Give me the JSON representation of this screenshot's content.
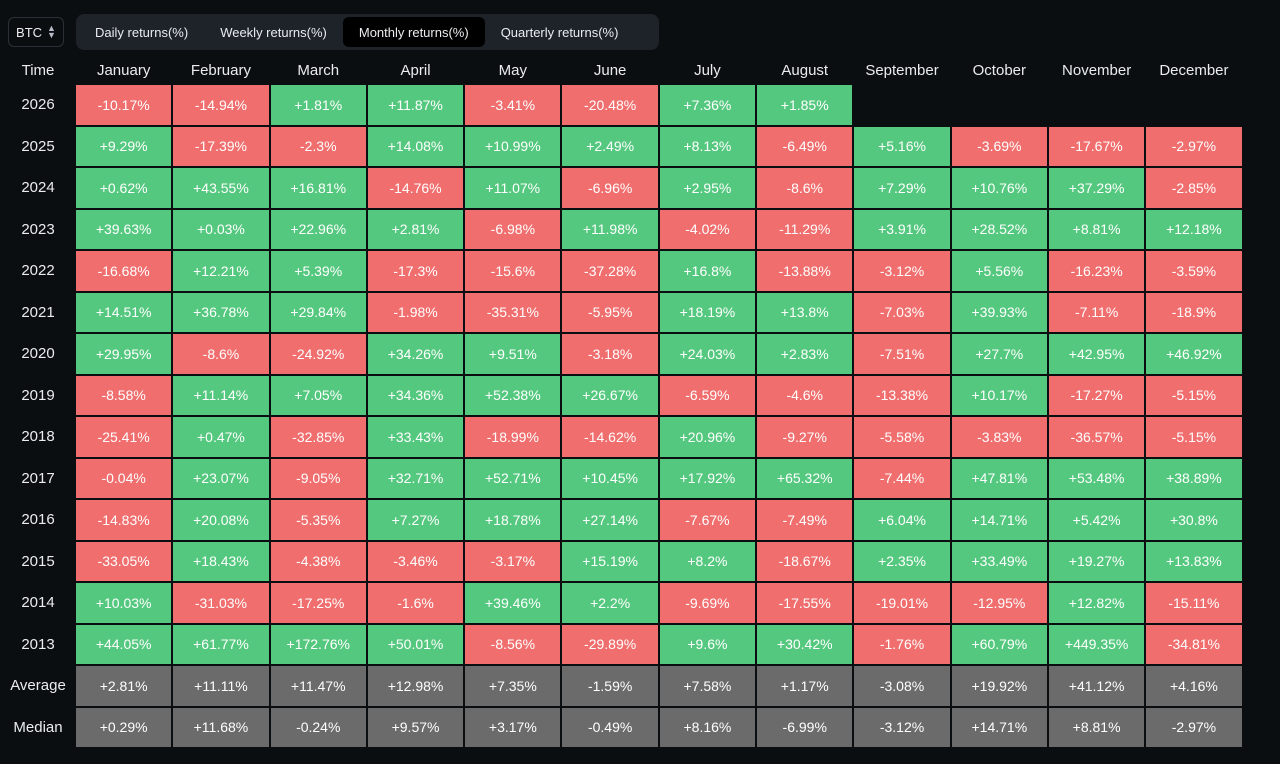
{
  "asset_selector": {
    "value": "BTC"
  },
  "tabs": [
    {
      "label": "Daily returns(%)",
      "active": false
    },
    {
      "label": "Weekly returns(%)",
      "active": false
    },
    {
      "label": "Monthly returns(%)",
      "active": true
    },
    {
      "label": "Quarterly returns(%)",
      "active": false
    }
  ],
  "colors": {
    "positive": "#55c87f",
    "negative": "#f06e6e",
    "summary": "#6b6b6b",
    "background": "#0b0e11"
  },
  "table": {
    "corner_header": "Time",
    "columns": [
      "January",
      "February",
      "March",
      "April",
      "May",
      "June",
      "July",
      "August",
      "September",
      "October",
      "November",
      "December"
    ],
    "rows": [
      {
        "year": "2026",
        "values": [
          "-10.17%",
          "-14.94%",
          "+1.81%",
          "+11.87%",
          "-3.41%",
          "-20.48%",
          "+7.36%",
          "+1.85%",
          "",
          "",
          "",
          ""
        ]
      },
      {
        "year": "2025",
        "values": [
          "+9.29%",
          "-17.39%",
          "-2.3%",
          "+14.08%",
          "+10.99%",
          "+2.49%",
          "+8.13%",
          "-6.49%",
          "+5.16%",
          "-3.69%",
          "-17.67%",
          "-2.97%"
        ]
      },
      {
        "year": "2024",
        "values": [
          "+0.62%",
          "+43.55%",
          "+16.81%",
          "-14.76%",
          "+11.07%",
          "-6.96%",
          "+2.95%",
          "-8.6%",
          "+7.29%",
          "+10.76%",
          "+37.29%",
          "-2.85%"
        ]
      },
      {
        "year": "2023",
        "values": [
          "+39.63%",
          "+0.03%",
          "+22.96%",
          "+2.81%",
          "-6.98%",
          "+11.98%",
          "-4.02%",
          "-11.29%",
          "+3.91%",
          "+28.52%",
          "+8.81%",
          "+12.18%"
        ]
      },
      {
        "year": "2022",
        "values": [
          "-16.68%",
          "+12.21%",
          "+5.39%",
          "-17.3%",
          "-15.6%",
          "-37.28%",
          "+16.8%",
          "-13.88%",
          "-3.12%",
          "+5.56%",
          "-16.23%",
          "-3.59%"
        ]
      },
      {
        "year": "2021",
        "values": [
          "+14.51%",
          "+36.78%",
          "+29.84%",
          "-1.98%",
          "-35.31%",
          "-5.95%",
          "+18.19%",
          "+13.8%",
          "-7.03%",
          "+39.93%",
          "-7.11%",
          "-18.9%"
        ]
      },
      {
        "year": "2020",
        "values": [
          "+29.95%",
          "-8.6%",
          "-24.92%",
          "+34.26%",
          "+9.51%",
          "-3.18%",
          "+24.03%",
          "+2.83%",
          "-7.51%",
          "+27.7%",
          "+42.95%",
          "+46.92%"
        ]
      },
      {
        "year": "2019",
        "values": [
          "-8.58%",
          "+11.14%",
          "+7.05%",
          "+34.36%",
          "+52.38%",
          "+26.67%",
          "-6.59%",
          "-4.6%",
          "-13.38%",
          "+10.17%",
          "-17.27%",
          "-5.15%"
        ]
      },
      {
        "year": "2018",
        "values": [
          "-25.41%",
          "+0.47%",
          "-32.85%",
          "+33.43%",
          "-18.99%",
          "-14.62%",
          "+20.96%",
          "-9.27%",
          "-5.58%",
          "-3.83%",
          "-36.57%",
          "-5.15%"
        ]
      },
      {
        "year": "2017",
        "values": [
          "-0.04%",
          "+23.07%",
          "-9.05%",
          "+32.71%",
          "+52.71%",
          "+10.45%",
          "+17.92%",
          "+65.32%",
          "-7.44%",
          "+47.81%",
          "+53.48%",
          "+38.89%"
        ]
      },
      {
        "year": "2016",
        "values": [
          "-14.83%",
          "+20.08%",
          "-5.35%",
          "+7.27%",
          "+18.78%",
          "+27.14%",
          "-7.67%",
          "-7.49%",
          "+6.04%",
          "+14.71%",
          "+5.42%",
          "+30.8%"
        ]
      },
      {
        "year": "2015",
        "values": [
          "-33.05%",
          "+18.43%",
          "-4.38%",
          "-3.46%",
          "-3.17%",
          "+15.19%",
          "+8.2%",
          "-18.67%",
          "+2.35%",
          "+33.49%",
          "+19.27%",
          "+13.83%"
        ]
      },
      {
        "year": "2014",
        "values": [
          "+10.03%",
          "-31.03%",
          "-17.25%",
          "-1.6%",
          "+39.46%",
          "+2.2%",
          "-9.69%",
          "-17.55%",
          "-19.01%",
          "-12.95%",
          "+12.82%",
          "-15.11%"
        ]
      },
      {
        "year": "2013",
        "values": [
          "+44.05%",
          "+61.77%",
          "+172.76%",
          "+50.01%",
          "-8.56%",
          "-29.89%",
          "+9.6%",
          "+30.42%",
          "-1.76%",
          "+60.79%",
          "+449.35%",
          "-34.81%"
        ]
      }
    ],
    "summary_rows": [
      {
        "label": "Average",
        "values": [
          "+2.81%",
          "+11.11%",
          "+11.47%",
          "+12.98%",
          "+7.35%",
          "-1.59%",
          "+7.58%",
          "+1.17%",
          "-3.08%",
          "+19.92%",
          "+41.12%",
          "+4.16%"
        ]
      },
      {
        "label": "Median",
        "values": [
          "+0.29%",
          "+11.68%",
          "-0.24%",
          "+9.57%",
          "+3.17%",
          "-0.49%",
          "+8.16%",
          "-6.99%",
          "-3.12%",
          "+14.71%",
          "+8.81%",
          "-2.97%"
        ]
      }
    ]
  }
}
